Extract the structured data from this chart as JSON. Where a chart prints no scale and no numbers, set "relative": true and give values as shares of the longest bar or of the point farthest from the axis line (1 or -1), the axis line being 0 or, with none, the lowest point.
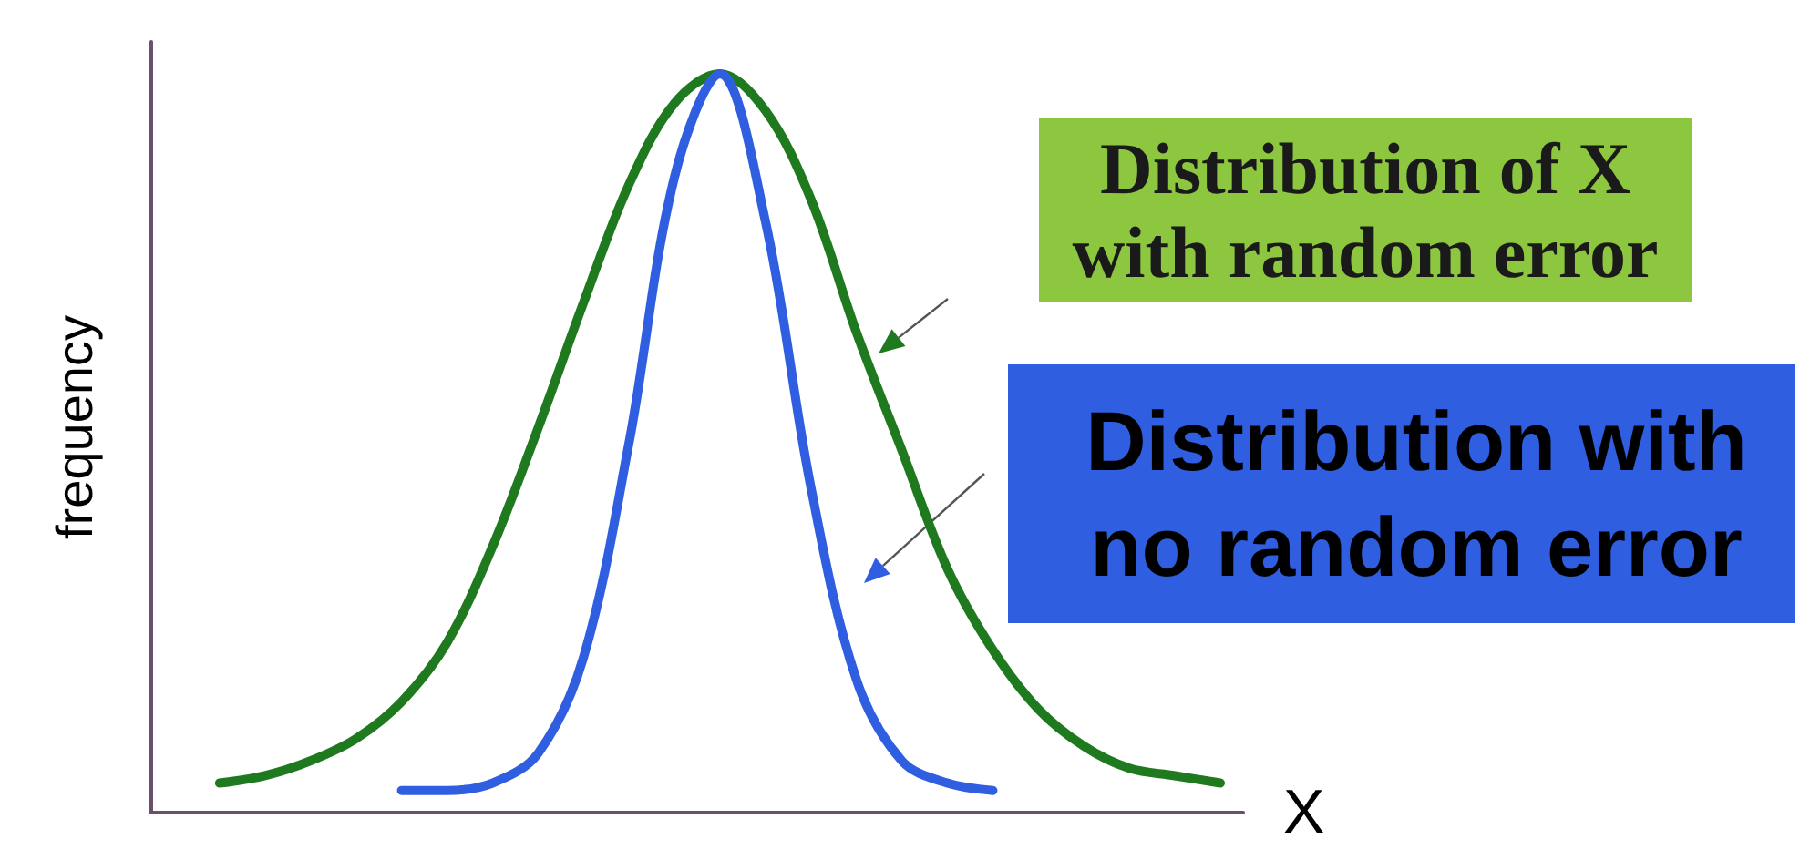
{
  "chart_data": {
    "type": "line",
    "relative": true,
    "ylabel": "frequency",
    "xlabel": "X",
    "categories": [
      null,
      null,
      null,
      null,
      null,
      null,
      null,
      null,
      null,
      null,
      null,
      null,
      null,
      null,
      null,
      null,
      null,
      null,
      null,
      null,
      null,
      null,
      null,
      null
    ],
    "series": [
      {
        "name": "Distribution of X with random error",
        "color": "#1f7a1f",
        "values": [
          null,
          0.04,
          0.05,
          0.07,
          0.1,
          0.15,
          0.23,
          0.36,
          0.52,
          0.69,
          0.85,
          0.96,
          1,
          0.95,
          0.83,
          0.65,
          0.49,
          0.33,
          0.22,
          0.14,
          0.09,
          0.06,
          0.05,
          0.04
        ]
      },
      {
        "name": "Distribution with no random error",
        "color": "#2f5fe0",
        "values": [
          null,
          null,
          null,
          null,
          null,
          0.03,
          0.03,
          0.04,
          0.08,
          0.21,
          0.5,
          0.86,
          1,
          0.8,
          0.44,
          0.18,
          0.07,
          0.04,
          0.03,
          null,
          null,
          null,
          null,
          null
        ]
      }
    ],
    "grid": false,
    "legend": false,
    "marker": "none",
    "line_style": "solid"
  }
}
